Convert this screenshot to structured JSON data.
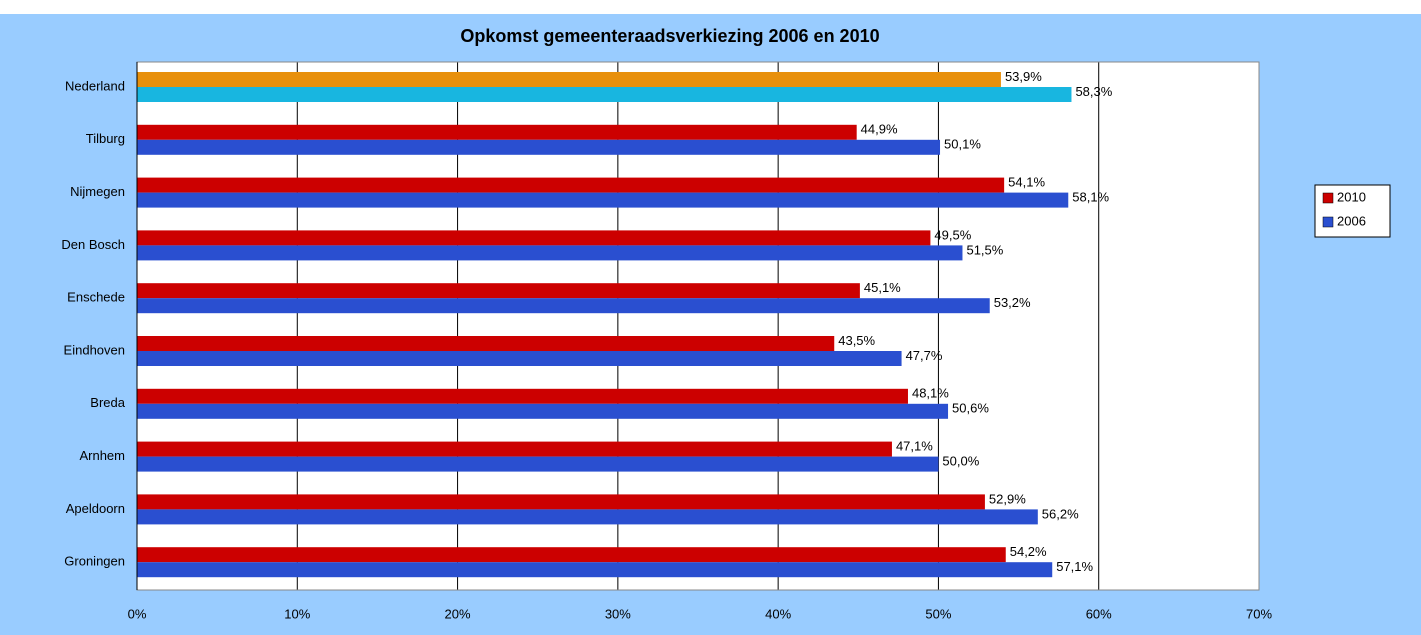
{
  "chart_data": {
    "type": "bar",
    "orientation": "horizontal",
    "title": "Opkomst gemeenteraadsverkiezing 2006 en 2010",
    "categories": [
      "Nederland",
      "Tilburg",
      "Nijmegen",
      "Den Bosch",
      "Enschede",
      "Eindhoven",
      "Breda",
      "Arnhem",
      "Apeldoorn",
      "Groningen"
    ],
    "series": [
      {
        "name": "2010",
        "color": "#cc0000",
        "colors": [
          "#e8900c",
          "#cc0000",
          "#cc0000",
          "#cc0000",
          "#cc0000",
          "#cc0000",
          "#cc0000",
          "#cc0000",
          "#cc0000",
          "#cc0000"
        ],
        "values": [
          53.9,
          44.9,
          54.1,
          49.5,
          45.1,
          43.5,
          48.1,
          47.1,
          52.9,
          54.2
        ],
        "value_labels": [
          "53,9%",
          "44,9%",
          "54,1%",
          "49,5%",
          "45,1%",
          "43,5%",
          "48,1%",
          "47,1%",
          "52,9%",
          "54,2%"
        ]
      },
      {
        "name": "2006",
        "color": "#2a4fd0",
        "colors": [
          "#18b6e0",
          "#2a4fd0",
          "#2a4fd0",
          "#2a4fd0",
          "#2a4fd0",
          "#2a4fd0",
          "#2a4fd0",
          "#2a4fd0",
          "#2a4fd0",
          "#2a4fd0"
        ],
        "values": [
          58.3,
          50.1,
          58.1,
          51.5,
          53.2,
          47.7,
          50.6,
          50.0,
          56.2,
          57.1
        ],
        "value_labels": [
          "58,3%",
          "50,1%",
          "58,1%",
          "51,5%",
          "53,2%",
          "47,7%",
          "50,6%",
          "50,0%",
          "56,2%",
          "57,1%"
        ]
      }
    ],
    "xlim": [
      0,
      70
    ],
    "xticks": [
      {
        "value": 0,
        "label": "0%"
      },
      {
        "value": 10,
        "label": "10%"
      },
      {
        "value": 20,
        "label": "20%"
      },
      {
        "value": 30,
        "label": "30%"
      },
      {
        "value": 40,
        "label": "40%"
      },
      {
        "value": 50,
        "label": "50%"
      },
      {
        "value": 60,
        "label": "60%"
      },
      {
        "value": 70,
        "label": "70%"
      }
    ],
    "grid": true,
    "legend": "right"
  }
}
